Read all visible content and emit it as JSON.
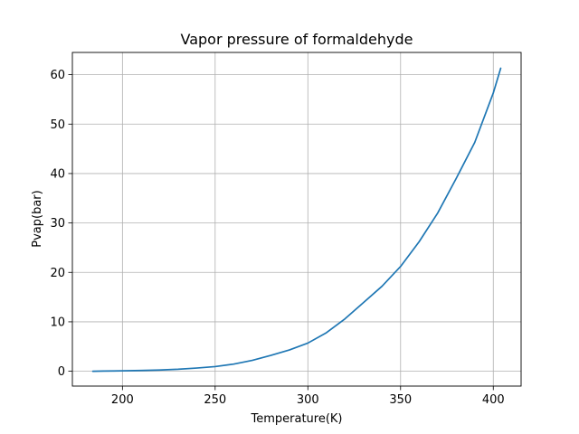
{
  "chart_data": {
    "type": "line",
    "title": "Vapor pressure of formaldehyde",
    "xlabel": "Temperature(K)",
    "ylabel": "Pvap(bar)",
    "xlim": [
      173,
      415
    ],
    "ylim": [
      -3,
      64.5
    ],
    "xticks": [
      200,
      250,
      300,
      350,
      400
    ],
    "yticks": [
      0,
      10,
      20,
      30,
      40,
      50,
      60
    ],
    "grid": true,
    "line_color": "#1f77b4",
    "series": [
      {
        "x": [
          184,
          190,
          200,
          210,
          220,
          230,
          240,
          250,
          260,
          270,
          280,
          290,
          300,
          310,
          320,
          330,
          340,
          350,
          360,
          370,
          380,
          390,
          400,
          404
        ],
        "y": [
          0.0,
          0.04,
          0.08,
          0.15,
          0.25,
          0.4,
          0.65,
          0.95,
          1.45,
          2.2,
          3.2,
          4.3,
          5.7,
          7.8,
          10.6,
          13.9,
          17.2,
          21.2,
          26.2,
          32.0,
          39.0,
          46.3,
          56.3,
          61.3
        ]
      }
    ]
  }
}
